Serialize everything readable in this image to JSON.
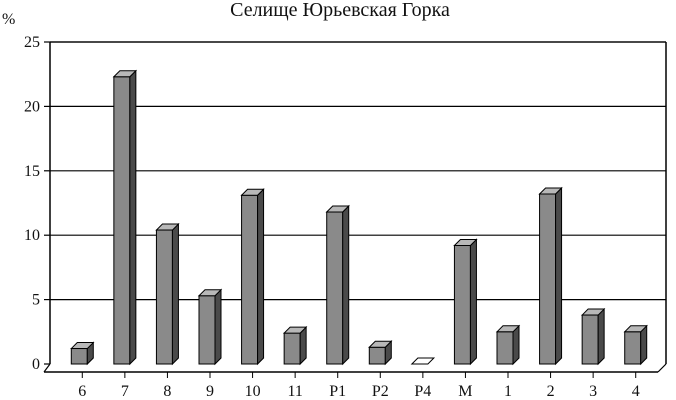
{
  "chart_data": {
    "type": "bar",
    "title": "Селище Юрьевская Горка",
    "ylabel": "%",
    "xlabel": "",
    "categories": [
      "6",
      "7",
      "8",
      "9",
      "10",
      "11",
      "P1",
      "P2",
      "P4",
      "M",
      "1",
      "2",
      "3",
      "4"
    ],
    "values": [
      1.2,
      22.3,
      10.4,
      5.3,
      13.1,
      2.4,
      11.8,
      1.3,
      0.0,
      9.2,
      2.5,
      13.2,
      3.8,
      2.5
    ],
    "ylim": [
      0,
      25
    ],
    "yticks": [
      "0",
      "5",
      "10",
      "15",
      "20",
      "25"
    ],
    "grid": true,
    "legend": "none",
    "colors": {
      "bar_front": "#8a8a8a",
      "bar_side": "#4a4a4a",
      "bar_top": "#b8b8b8",
      "axis": "#000000",
      "grid": "#000000"
    }
  }
}
